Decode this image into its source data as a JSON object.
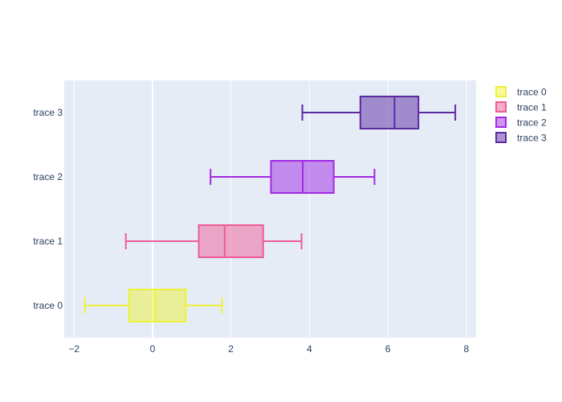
{
  "chart_data": {
    "type": "box",
    "orientation": "horizontal",
    "title": "",
    "xlabel": "",
    "ylabel": "",
    "xlim": [
      -2.25,
      8.25
    ],
    "x_ticks": [
      -2,
      0,
      2,
      4,
      6,
      8
    ],
    "x_tick_labels": [
      "−2",
      "0",
      "2",
      "4",
      "6",
      "8"
    ],
    "grid": true,
    "legend_position": "top-right",
    "series": [
      {
        "name": "trace 0",
        "color": "#eef23a",
        "min": -1.72,
        "q1": -0.6,
        "median": 0.08,
        "q3": 0.85,
        "max": 1.77
      },
      {
        "name": "trace 1",
        "color": "#ef5b95",
        "min": -0.68,
        "q1": 1.18,
        "median": 1.84,
        "q3": 2.82,
        "max": 3.8
      },
      {
        "name": "trace 2",
        "color": "#a128e3",
        "min": 1.48,
        "q1": 3.02,
        "median": 3.83,
        "q3": 4.62,
        "max": 5.66
      },
      {
        "name": "trace 3",
        "color": "#5b2aa3",
        "min": 3.82,
        "q1": 5.3,
        "median": 6.17,
        "q3": 6.78,
        "max": 7.72
      }
    ]
  }
}
